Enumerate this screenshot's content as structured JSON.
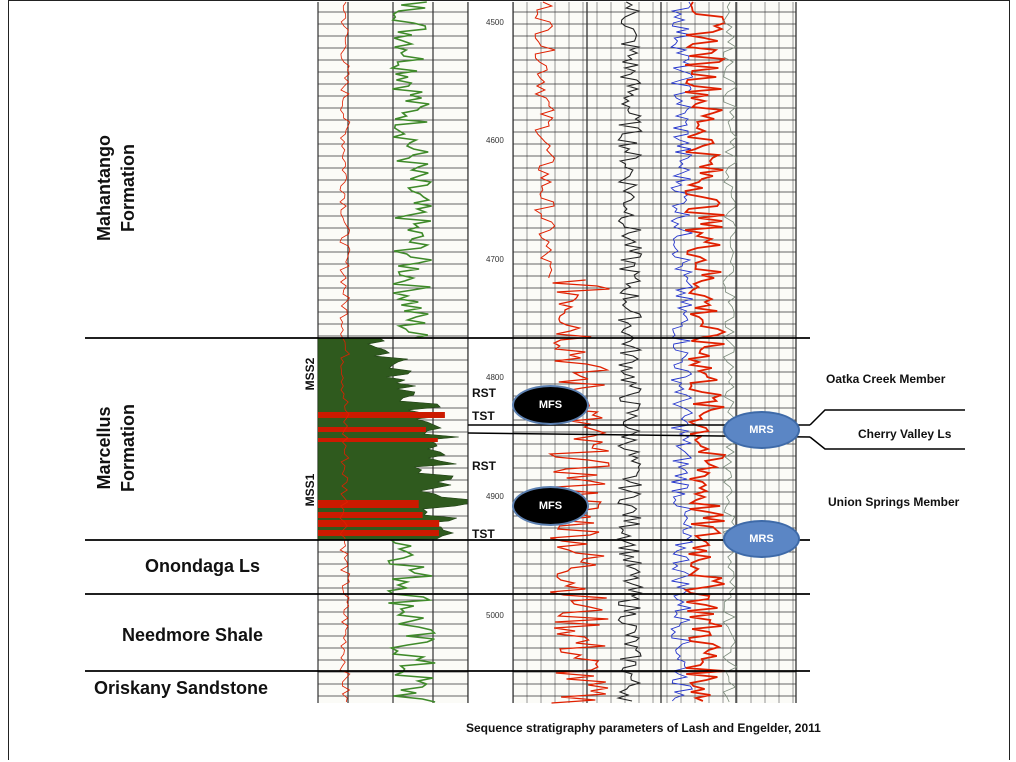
{
  "formations": {
    "mahantango": "Mahantango\nFormation",
    "marcellus": "Marcellus\nFormation",
    "onondaga": "Onondaga Ls",
    "needmore": "Needmore Shale",
    "oriskany": "Oriskany Sandstone"
  },
  "sequences": {
    "mss2": "MSS2",
    "mss1": "MSS1"
  },
  "tracts": {
    "rst_upper": "RST",
    "tst_upper": "TST",
    "rst_lower": "RST",
    "tst_lower": "TST"
  },
  "markers": {
    "mfs_upper": "MFS",
    "mfs_lower": "MFS",
    "mrs_upper": "MRS",
    "mrs_lower": "MRS"
  },
  "members": {
    "oatka": "Oatka Creek Member",
    "cherry": "Cherry Valley Ls",
    "union": "Union Springs Member"
  },
  "depths": [
    "4500",
    "4600",
    "4700",
    "4800",
    "4900",
    "5000"
  ],
  "caption": "Sequence stratigraphy parameters of Lash and Engelder, 2011",
  "colors": {
    "gamma_fill": "#2f5a1e",
    "gamma_line": "#3f8a2a",
    "red_log": "#e02000",
    "black_log": "#222222",
    "blue_log": "#2233cc",
    "grid": "#333333"
  }
}
